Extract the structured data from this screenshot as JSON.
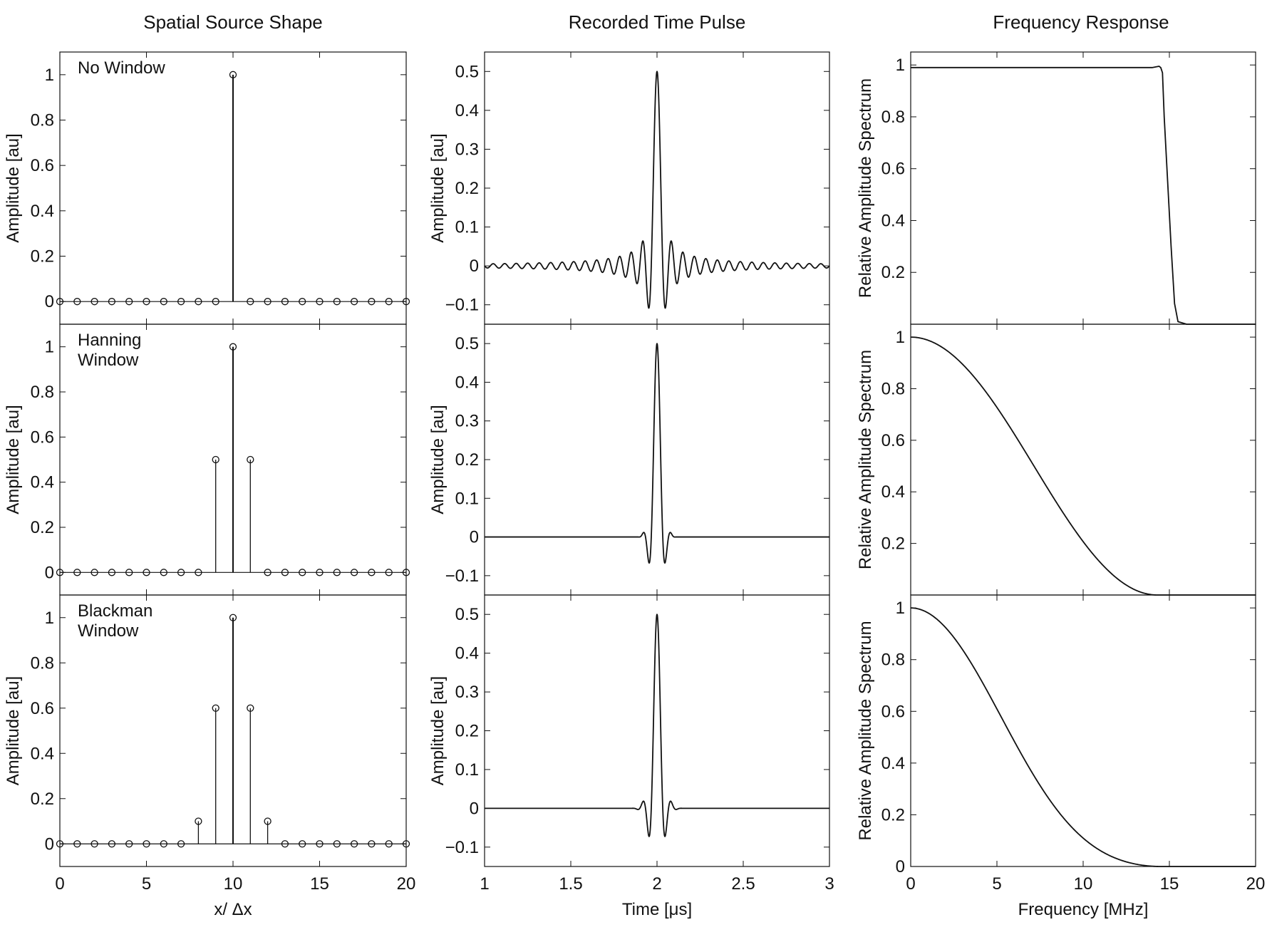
{
  "figure": {
    "column_titles": [
      "Spatial Source Shape",
      "Recorded Time Pulse",
      "Frequency Response"
    ]
  },
  "chart_data": [
    {
      "type": "stem",
      "column": 0,
      "row": 0,
      "annotation": [
        "No Window"
      ],
      "ylabel": "Amplitude [au]",
      "xlabel": "",
      "xlim": [
        0,
        20
      ],
      "ylim": [
        -0.1,
        1.1
      ],
      "yticks": [
        0,
        0.2,
        0.4,
        0.6,
        0.8,
        1
      ],
      "yticklabels": [
        "0",
        "0.2",
        "0.4",
        "0.6",
        "0.8",
        "1"
      ],
      "xticks": [
        0,
        5,
        10,
        15,
        20
      ],
      "xticklabels": [],
      "x": [
        0,
        1,
        2,
        3,
        4,
        5,
        6,
        7,
        8,
        9,
        10,
        11,
        12,
        13,
        14,
        15,
        16,
        17,
        18,
        19,
        20
      ],
      "y": [
        0,
        0,
        0,
        0,
        0,
        0,
        0,
        0,
        0,
        0,
        1,
        0,
        0,
        0,
        0,
        0,
        0,
        0,
        0,
        0,
        0
      ]
    },
    {
      "type": "line",
      "column": 1,
      "row": 0,
      "ylabel": "Amplitude [au]",
      "xlabel": "",
      "xlim": [
        1,
        3
      ],
      "ylim": [
        -0.15,
        0.55
      ],
      "yticks": [
        -0.1,
        0,
        0.1,
        0.2,
        0.3,
        0.4,
        0.5
      ],
      "yticklabels": [
        "−0.1",
        "0",
        "0.1",
        "0.2",
        "0.3",
        "0.4",
        "0.5"
      ],
      "xticks": [
        1,
        1.5,
        2,
        2.5,
        3
      ],
      "xticklabels": [],
      "model": {
        "kind": "sinc",
        "center": 2,
        "peak": 0.5,
        "cutoff_mhz": 15,
        "window": "none"
      }
    },
    {
      "type": "line",
      "column": 2,
      "row": 0,
      "ylabel": "Relative Amplitude Spectrum",
      "xlabel": "",
      "xlim": [
        0,
        20
      ],
      "ylim": [
        0,
        1.05
      ],
      "yticks": [
        0.2,
        0.4,
        0.6,
        0.8,
        1
      ],
      "yticklabels": [
        "0.2",
        "0.4",
        "0.6",
        "0.8",
        "1"
      ],
      "xticks": [
        0,
        5,
        10,
        15,
        20
      ],
      "xticklabels": [],
      "x": [
        0,
        13.6,
        14.0,
        14.4,
        14.5,
        14.6,
        14.7,
        14.9,
        15.1,
        15.3,
        15.5,
        16.0,
        20
      ],
      "y": [
        0.99,
        0.99,
        0.99,
        0.995,
        0.99,
        0.97,
        0.8,
        0.55,
        0.3,
        0.08,
        0.01,
        0.0,
        0.0
      ]
    },
    {
      "type": "stem",
      "column": 0,
      "row": 1,
      "annotation": [
        "Hanning",
        "Window"
      ],
      "ylabel": "Amplitude [au]",
      "xlabel": "",
      "xlim": [
        0,
        20
      ],
      "ylim": [
        -0.1,
        1.1
      ],
      "yticks": [
        0,
        0.2,
        0.4,
        0.6,
        0.8,
        1
      ],
      "yticklabels": [
        "0",
        "0.2",
        "0.4",
        "0.6",
        "0.8",
        "1"
      ],
      "xticks": [
        0,
        5,
        10,
        15,
        20
      ],
      "xticklabels": [],
      "x": [
        0,
        1,
        2,
        3,
        4,
        5,
        6,
        7,
        8,
        9,
        10,
        11,
        12,
        13,
        14,
        15,
        16,
        17,
        18,
        19,
        20
      ],
      "y": [
        0,
        0,
        0,
        0,
        0,
        0,
        0,
        0,
        0,
        0.5,
        1,
        0.5,
        0,
        0,
        0,
        0,
        0,
        0,
        0,
        0,
        0
      ]
    },
    {
      "type": "line",
      "column": 1,
      "row": 1,
      "ylabel": "Amplitude [au]",
      "xlabel": "",
      "xlim": [
        1,
        3
      ],
      "ylim": [
        -0.15,
        0.55
      ],
      "yticks": [
        -0.1,
        0,
        0.1,
        0.2,
        0.3,
        0.4,
        0.5
      ],
      "yticklabels": [
        "−0.1",
        "0",
        "0.1",
        "0.2",
        "0.3",
        "0.4",
        "0.5"
      ],
      "xticks": [
        1,
        1.5,
        2,
        2.5,
        3
      ],
      "xticklabels": [],
      "model": {
        "kind": "windowed-sinc",
        "center": 2,
        "peak": 0.5,
        "cutoff_mhz": 15,
        "window": "hanning"
      }
    },
    {
      "type": "line",
      "column": 2,
      "row": 1,
      "ylabel": "Relative Amplitude Spectrum",
      "xlabel": "",
      "xlim": [
        0,
        20
      ],
      "ylim": [
        0,
        1.05
      ],
      "yticks": [
        0.2,
        0.4,
        0.6,
        0.8,
        1
      ],
      "yticklabels": [
        "0.2",
        "0.4",
        "0.6",
        "0.8",
        "1"
      ],
      "xticks": [
        0,
        5,
        10,
        15,
        20
      ],
      "xticklabels": [],
      "model": {
        "kind": "spectrum",
        "window": "hanning",
        "zero_mhz": 14.3
      }
    },
    {
      "type": "stem",
      "column": 0,
      "row": 2,
      "annotation": [
        "Blackman",
        "Window"
      ],
      "ylabel": "Amplitude [au]",
      "xlabel": "x/ Δx",
      "xlim": [
        0,
        20
      ],
      "ylim": [
        -0.1,
        1.1
      ],
      "yticks": [
        0,
        0.2,
        0.4,
        0.6,
        0.8,
        1
      ],
      "yticklabels": [
        "0",
        "0.2",
        "0.4",
        "0.6",
        "0.8",
        "1"
      ],
      "xticks": [
        0,
        5,
        10,
        15,
        20
      ],
      "xticklabels": [
        "0",
        "5",
        "10",
        "15",
        "20"
      ],
      "x": [
        0,
        1,
        2,
        3,
        4,
        5,
        6,
        7,
        8,
        9,
        10,
        11,
        12,
        13,
        14,
        15,
        16,
        17,
        18,
        19,
        20
      ],
      "y": [
        0,
        0,
        0,
        0,
        0,
        0,
        0,
        0,
        0.1,
        0.6,
        1,
        0.6,
        0.1,
        0,
        0,
        0,
        0,
        0,
        0,
        0,
        0
      ]
    },
    {
      "type": "line",
      "column": 1,
      "row": 2,
      "ylabel": "Amplitude [au]",
      "xlabel": "Time [μs]",
      "xlim": [
        1,
        3
      ],
      "ylim": [
        -0.15,
        0.55
      ],
      "yticks": [
        -0.1,
        0,
        0.1,
        0.2,
        0.3,
        0.4,
        0.5
      ],
      "yticklabels": [
        "−0.1",
        "0",
        "0.1",
        "0.2",
        "0.3",
        "0.4",
        "0.5"
      ],
      "xticks": [
        1,
        1.5,
        2,
        2.5,
        3
      ],
      "xticklabels": [
        "1",
        "1.5",
        "2",
        "2.5",
        "3"
      ],
      "model": {
        "kind": "windowed-sinc",
        "center": 2,
        "peak": 0.5,
        "cutoff_mhz": 15,
        "window": "blackman"
      }
    },
    {
      "type": "line",
      "column": 2,
      "row": 2,
      "ylabel": "Relative Amplitude Spectrum",
      "xlabel": "Frequency [MHz]",
      "xlim": [
        0,
        20
      ],
      "ylim": [
        0,
        1.05
      ],
      "yticks": [
        0,
        0.2,
        0.4,
        0.6,
        0.8,
        1
      ],
      "yticklabels": [
        "0",
        "0.2",
        "0.4",
        "0.6",
        "0.8",
        "1"
      ],
      "xticks": [
        0,
        5,
        10,
        15,
        20
      ],
      "xticklabels": [
        "0",
        "5",
        "10",
        "15",
        "20"
      ],
      "model": {
        "kind": "spectrum",
        "window": "blackman",
        "zero_mhz": 14.5
      }
    }
  ]
}
